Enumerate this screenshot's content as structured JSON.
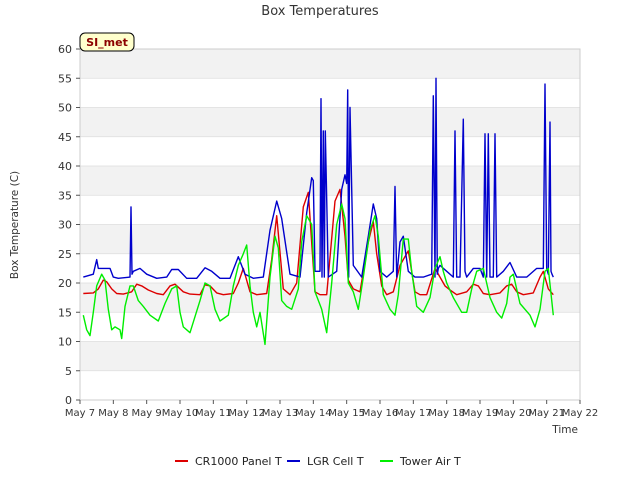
{
  "chart_data": {
    "type": "line",
    "title": "Box Temperatures",
    "xlabel": "Time",
    "ylabel": "Box Temperature (C)",
    "ylim": [
      0,
      60
    ],
    "yticks": [
      0,
      5,
      10,
      15,
      20,
      25,
      30,
      35,
      40,
      45,
      50,
      55,
      60
    ],
    "xlim": [
      7,
      22
    ],
    "xticks": [
      {
        "x": 7,
        "label": "May 7"
      },
      {
        "x": 8,
        "label": "May 8"
      },
      {
        "x": 9,
        "label": "May 9"
      },
      {
        "x": 10,
        "label": "May 10"
      },
      {
        "x": 11,
        "label": "May 11"
      },
      {
        "x": 12,
        "label": "May 12"
      },
      {
        "x": 13,
        "label": "May 13"
      },
      {
        "x": 14,
        "label": "May 14"
      },
      {
        "x": 15,
        "label": "May 15"
      },
      {
        "x": 16,
        "label": "May 16"
      },
      {
        "x": 17,
        "label": "May 17"
      },
      {
        "x": 18,
        "label": "May 18"
      },
      {
        "x": 19,
        "label": "May 19"
      },
      {
        "x": 20,
        "label": "May 20"
      },
      {
        "x": 21,
        "label": "May 21"
      },
      {
        "x": 22,
        "label": "May 22"
      }
    ],
    "banded_background": true,
    "legend_position": "bottom",
    "annotation": {
      "text": "SI_met",
      "bg": "#ffffcc",
      "color": "#8b0000"
    },
    "series": [
      {
        "name": "CR1000 Panel T",
        "color": "#dd0000",
        "x": [
          7.1,
          7.4,
          7.55,
          7.7,
          7.8,
          7.95,
          8.1,
          8.3,
          8.55,
          8.7,
          8.85,
          9.05,
          9.3,
          9.5,
          9.7,
          9.85,
          10.1,
          10.3,
          10.6,
          10.75,
          10.9,
          11.1,
          11.3,
          11.6,
          11.75,
          11.9,
          12.1,
          12.3,
          12.6,
          12.75,
          12.9,
          13.1,
          13.3,
          13.5,
          13.7,
          13.85,
          14.05,
          14.2,
          14.4,
          14.65,
          14.8,
          14.95,
          15.05,
          15.2,
          15.4,
          15.65,
          15.8,
          15.9,
          16.05,
          16.2,
          16.4,
          16.6,
          16.85,
          17.05,
          17.2,
          17.4,
          17.65,
          17.8,
          17.95,
          18.1,
          18.3,
          18.6,
          18.8,
          18.95,
          19.1,
          19.3,
          19.6,
          19.8,
          19.95,
          20.1,
          20.3,
          20.6,
          20.8,
          20.9,
          21.05,
          21.2
        ],
        "y": [
          18.2,
          18.3,
          19.0,
          20.5,
          20.2,
          19.0,
          18.2,
          18.1,
          18.5,
          19.8,
          19.5,
          18.8,
          18.2,
          18.0,
          19.5,
          19.8,
          18.5,
          18.1,
          18.0,
          19.7,
          19.5,
          18.3,
          18.0,
          18.2,
          20.0,
          22.5,
          18.5,
          18.0,
          18.2,
          24.0,
          31.5,
          19.0,
          18.0,
          20.0,
          33.0,
          35.5,
          18.5,
          18.0,
          18.0,
          34.0,
          36.0,
          28.0,
          20.5,
          19.0,
          18.5,
          27.0,
          30.5,
          25.0,
          19.5,
          18.0,
          18.5,
          23.0,
          25.5,
          18.5,
          18.0,
          18.0,
          22.5,
          21.0,
          19.5,
          18.8,
          18.0,
          18.5,
          19.8,
          19.5,
          18.2,
          18.0,
          18.3,
          19.5,
          19.8,
          18.5,
          18.0,
          18.3,
          21.0,
          22.0,
          19.0,
          18.0
        ]
      },
      {
        "name": "LGR Cell T",
        "color": "#0000cc",
        "x": [
          7.1,
          7.4,
          7.5,
          7.55,
          7.6,
          7.9,
          8.0,
          8.15,
          8.5,
          8.53,
          8.56,
          8.6,
          8.8,
          9.0,
          9.3,
          9.6,
          9.75,
          9.95,
          10.2,
          10.5,
          10.75,
          10.95,
          11.2,
          11.5,
          11.75,
          11.95,
          12.2,
          12.5,
          12.7,
          12.9,
          13.05,
          13.3,
          13.6,
          13.8,
          13.95,
          14.0,
          14.05,
          14.2,
          14.23,
          14.26,
          14.3,
          14.33,
          14.36,
          14.45,
          14.7,
          14.85,
          14.95,
          15.0,
          15.03,
          15.06,
          15.1,
          15.2,
          15.45,
          15.65,
          15.8,
          15.9,
          16.0,
          16.2,
          16.4,
          16.45,
          16.5,
          16.6,
          16.7,
          16.85,
          17.05,
          17.3,
          17.55,
          17.6,
          17.65,
          17.68,
          17.72,
          17.75,
          17.8,
          18.0,
          18.2,
          18.25,
          18.3,
          18.4,
          18.5,
          18.55,
          18.6,
          18.8,
          19.0,
          19.1,
          19.15,
          19.2,
          19.25,
          19.3,
          19.4,
          19.45,
          19.5,
          19.7,
          19.9,
          20.1,
          20.4,
          20.7,
          20.9,
          20.95,
          21.0,
          21.05,
          21.1,
          21.13,
          21.16,
          21.2
        ],
        "y": [
          21.0,
          21.5,
          24.0,
          22.5,
          22.5,
          22.5,
          21.0,
          20.8,
          21.0,
          33.0,
          21.5,
          22.0,
          22.5,
          21.5,
          20.8,
          21.0,
          22.3,
          22.3,
          20.8,
          20.8,
          22.6,
          22.0,
          20.8,
          20.8,
          24.5,
          21.5,
          20.8,
          21.0,
          29.0,
          34.0,
          31.0,
          21.5,
          21.0,
          32.0,
          38.0,
          37.5,
          22.0,
          22.0,
          51.5,
          21.0,
          46.0,
          21.0,
          46.0,
          21.0,
          22.0,
          36.0,
          38.5,
          37.0,
          53.0,
          21.0,
          50.0,
          23.0,
          21.0,
          28.0,
          33.5,
          31.0,
          22.0,
          21.0,
          22.0,
          36.5,
          21.0,
          27.0,
          28.0,
          22.0,
          21.0,
          21.0,
          21.5,
          52.0,
          21.0,
          55.0,
          21.5,
          22.5,
          23.0,
          22.0,
          21.0,
          46.0,
          21.0,
          21.0,
          48.0,
          22.0,
          21.0,
          22.5,
          22.5,
          21.0,
          45.5,
          21.0,
          45.5,
          21.0,
          21.0,
          45.5,
          21.0,
          22.0,
          23.5,
          21.0,
          21.0,
          22.5,
          22.5,
          54.0,
          22.5,
          21.5,
          47.5,
          22.0,
          21.5,
          21.0
        ]
      },
      {
        "name": "Tower Air T",
        "color": "#00ee00",
        "x": [
          7.1,
          7.2,
          7.3,
          7.4,
          7.5,
          7.65,
          7.75,
          7.85,
          7.95,
          8.05,
          8.2,
          8.25,
          8.35,
          8.5,
          8.6,
          8.75,
          8.9,
          9.1,
          9.35,
          9.55,
          9.75,
          9.9,
          10.0,
          10.1,
          10.3,
          10.6,
          10.75,
          10.9,
          11.05,
          11.2,
          11.45,
          11.6,
          11.75,
          11.9,
          12.0,
          12.1,
          12.2,
          12.3,
          12.4,
          12.55,
          12.7,
          12.85,
          12.95,
          13.05,
          13.2,
          13.35,
          13.55,
          13.65,
          13.8,
          13.95,
          14.05,
          14.25,
          14.4,
          14.55,
          14.7,
          14.85,
          14.95,
          15.05,
          15.2,
          15.35,
          15.5,
          15.7,
          15.85,
          15.95,
          16.1,
          16.3,
          16.45,
          16.55,
          16.7,
          16.85,
          16.95,
          17.1,
          17.3,
          17.5,
          17.65,
          17.8,
          17.9,
          18.0,
          18.2,
          18.45,
          18.6,
          18.75,
          18.9,
          19.1,
          19.3,
          19.5,
          19.65,
          19.8,
          19.9,
          20.0,
          20.2,
          20.5,
          20.65,
          20.8,
          20.95,
          21.05,
          21.2
        ],
        "y": [
          14.5,
          12.0,
          11.0,
          15.0,
          19.5,
          21.5,
          20.5,
          15.5,
          12.0,
          12.5,
          12.0,
          10.5,
          16.0,
          19.5,
          19.5,
          17.0,
          16.0,
          14.5,
          13.5,
          16.5,
          19.0,
          19.5,
          15.0,
          12.5,
          11.5,
          17.0,
          20.0,
          19.5,
          15.5,
          13.5,
          14.5,
          19.5,
          23.0,
          25.0,
          26.5,
          19.5,
          15.0,
          12.5,
          15.0,
          9.5,
          21.0,
          28.0,
          26.0,
          17.0,
          16.0,
          15.5,
          19.0,
          27.0,
          31.5,
          30.0,
          18.5,
          15.5,
          11.5,
          20.0,
          30.0,
          33.5,
          31.0,
          20.0,
          18.5,
          15.5,
          21.0,
          29.0,
          31.5,
          28.0,
          18.0,
          15.5,
          14.5,
          18.0,
          27.5,
          27.5,
          22.0,
          16.0,
          15.0,
          17.5,
          22.5,
          24.5,
          22.0,
          20.0,
          17.5,
          15.0,
          15.0,
          19.0,
          22.0,
          22.5,
          17.5,
          15.0,
          14.0,
          16.5,
          21.0,
          21.5,
          16.5,
          14.5,
          12.5,
          15.5,
          22.0,
          22.5,
          14.5
        ]
      }
    ]
  }
}
